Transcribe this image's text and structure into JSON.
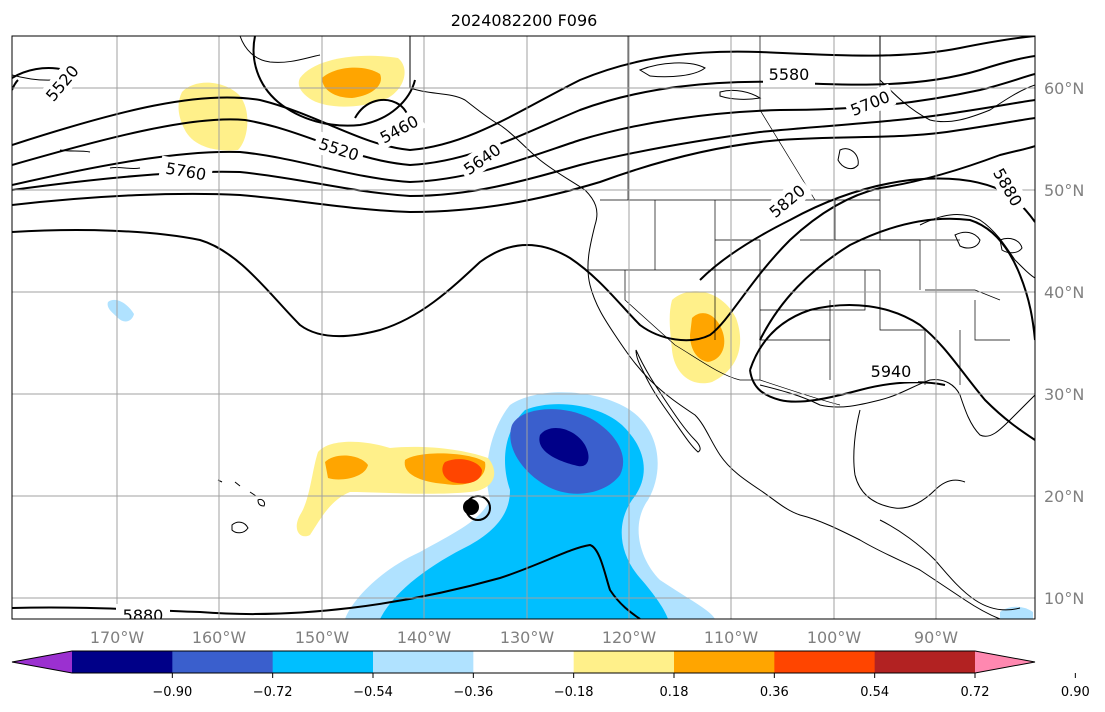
{
  "title": "2024082200 F096",
  "lon_labels": [
    "170°W",
    "160°W",
    "150°W",
    "140°W",
    "130°W",
    "120°W",
    "110°W",
    "100°W",
    "90°W"
  ],
  "lat_labels": [
    "60°N",
    "50°N",
    "40°N",
    "30°N",
    "20°N",
    "10°N"
  ],
  "colorbar": {
    "ticks": [
      "−0.90",
      "−0.72",
      "−0.54",
      "−0.36",
      "−0.18",
      "0.18",
      "0.36",
      "0.54",
      "0.72",
      "0.90"
    ],
    "colors": [
      "#9b30d0",
      "#000088",
      "#3a5fcd",
      "#00bfff",
      "#b0e2ff",
      "#ffffff",
      "#fff08a",
      "#ffa500",
      "#ff4500",
      "#b22222",
      "#ff88b0"
    ]
  },
  "contour_labels": [
    "5520",
    "5580",
    "5700",
    "5460",
    "5520",
    "5640",
    "5760",
    "5820",
    "5880",
    "5940",
    "5880"
  ],
  "colors": {
    "coast": "#000000",
    "grid": "#a0a0a0",
    "contour": "#000000"
  }
}
